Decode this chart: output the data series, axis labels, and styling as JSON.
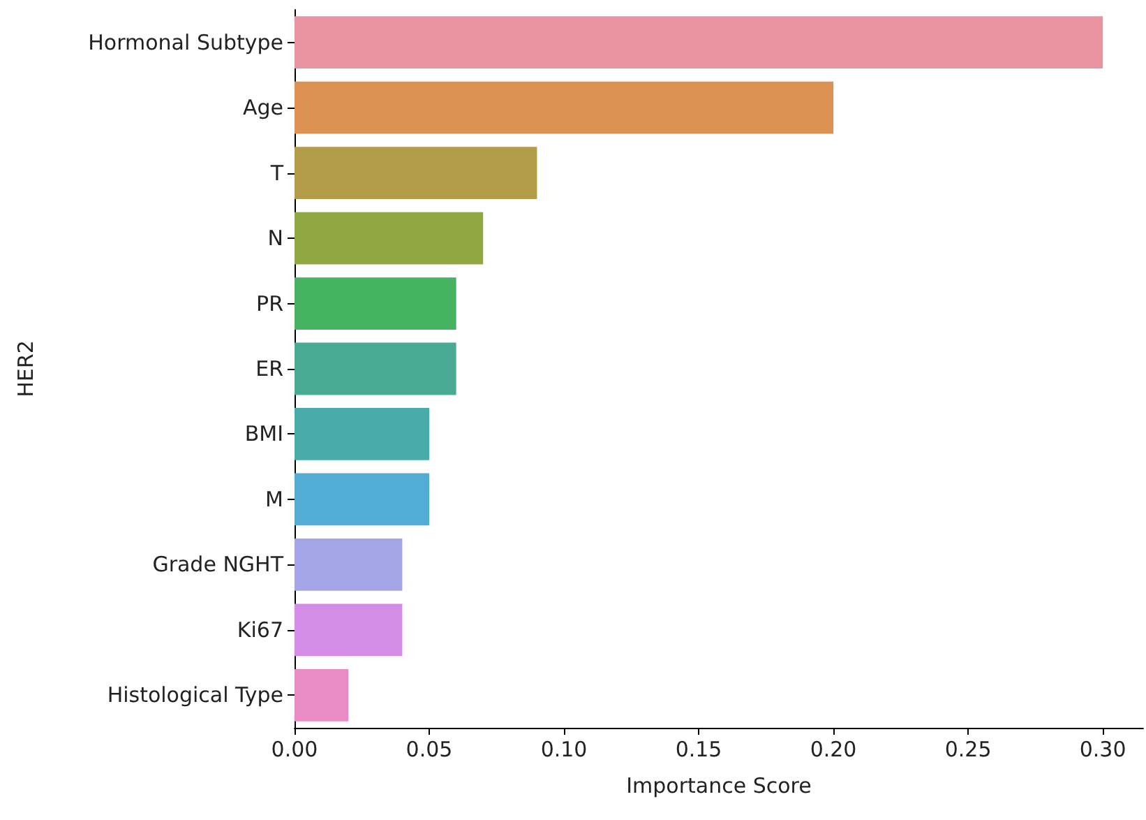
{
  "chart_data": {
    "type": "bar",
    "orientation": "horizontal",
    "xlabel": "Importance Score",
    "ylabel": "HER2",
    "categories": [
      "Hormonal Subtype",
      "Age",
      "T",
      "N",
      "PR",
      "ER",
      "BMI",
      "M",
      "Grade NGHT",
      "Ki67",
      "Histological Type"
    ],
    "values": [
      0.3,
      0.2,
      0.09,
      0.07,
      0.06,
      0.06,
      0.05,
      0.05,
      0.04,
      0.04,
      0.02
    ],
    "colors": [
      "#e8939f",
      "#dd9152",
      "#b39c48",
      "#91a842",
      "#46b362",
      "#4aab94",
      "#49aaaa",
      "#52acd4",
      "#a4a6e8",
      "#d58ee8",
      "#e98cc6"
    ],
    "xlim": [
      0,
      0.315
    ],
    "xticks": [
      {
        "value": 0,
        "label": "0.00"
      },
      {
        "value": 0.05,
        "label": "0.05"
      },
      {
        "value": 0.1,
        "label": "0.10"
      },
      {
        "value": 0.15,
        "label": "0.15"
      },
      {
        "value": 0.2,
        "label": "0.20"
      },
      {
        "value": 0.25,
        "label": "0.25"
      },
      {
        "value": 0.3,
        "label": "0.30"
      }
    ],
    "grid": false
  }
}
